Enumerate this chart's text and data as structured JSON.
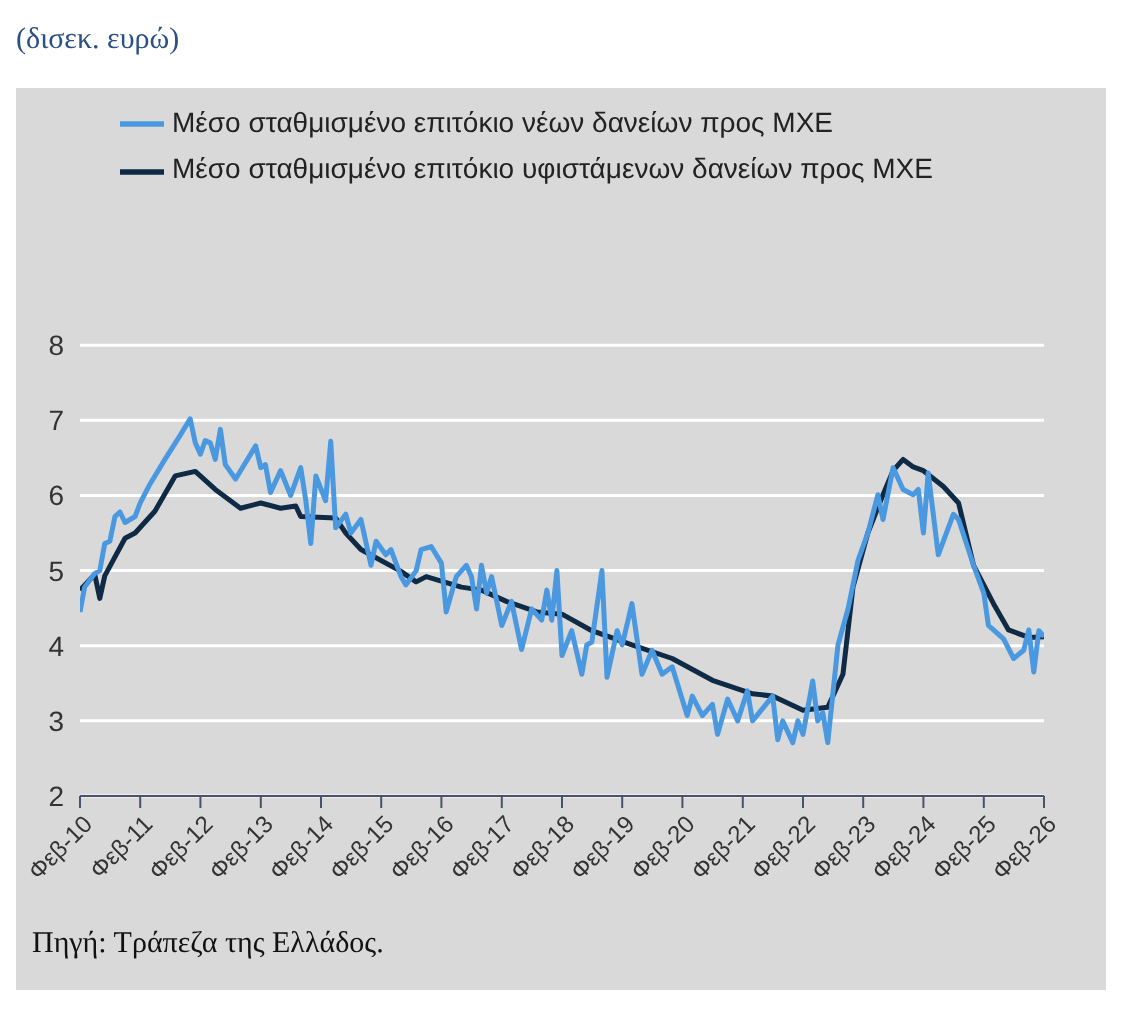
{
  "chart_data": {
    "type": "line",
    "title": "(δισεκ. ευρώ)",
    "annotations": [
      "Πηγή: Τράπεζα της Ελλάδος."
    ],
    "ylim": [
      2,
      8
    ],
    "yticks": [
      2,
      3,
      4,
      5,
      6,
      7,
      8
    ],
    "xlim": [
      "2010-02",
      "2026-02"
    ],
    "xticks": [
      {
        "value": "2010-02",
        "label": "Φεβ-10"
      },
      {
        "value": "2011-02",
        "label": "Φεβ-11"
      },
      {
        "value": "2012-02",
        "label": "Φεβ-12"
      },
      {
        "value": "2013-02",
        "label": "Φεβ-13"
      },
      {
        "value": "2014-02",
        "label": "Φεβ-14"
      },
      {
        "value": "2015-02",
        "label": "Φεβ-15"
      },
      {
        "value": "2016-02",
        "label": "Φεβ-16"
      },
      {
        "value": "2017-02",
        "label": "Φεβ-17"
      },
      {
        "value": "2018-02",
        "label": "Φεβ-18"
      },
      {
        "value": "2019-02",
        "label": "Φεβ-19"
      },
      {
        "value": "2020-02",
        "label": "Φεβ-20"
      },
      {
        "value": "2021-02",
        "label": "Φεβ-21"
      },
      {
        "value": "2022-02",
        "label": "Φεβ-22"
      },
      {
        "value": "2023-02",
        "label": "Φεβ-23"
      },
      {
        "value": "2024-02",
        "label": "Φεβ-24"
      },
      {
        "value": "2025-02",
        "label": "Φεβ-25"
      },
      {
        "value": "2026-02",
        "label": "Φεβ-26"
      }
    ],
    "grid": "y",
    "legend": "top left",
    "marker": "none",
    "line_style": "solid",
    "series": [
      {
        "name": "Μέσο σταθμισμένο επιτόκιο υφιστάμενων δανείων προς ΜΧΕ",
        "color": "#0f2a44",
        "x": [
          "2010-02",
          "2010-05",
          "2010-06",
          "2010-07",
          "2010-11",
          "2011-01",
          "2011-05",
          "2011-09",
          "2012-01",
          "2012-05",
          "2012-10",
          "2013-02",
          "2013-06",
          "2013-09",
          "2013-10",
          "2014-05",
          "2014-07",
          "2014-10",
          "2015-06",
          "2015-09",
          "2015-11",
          "2016-06",
          "2016-10",
          "2017-03",
          "2017-09",
          "2018-02",
          "2018-08",
          "2019-04",
          "2019-12",
          "2020-08",
          "2021-04",
          "2021-08",
          "2022-02",
          "2022-07",
          "2022-10",
          "2022-12",
          "2023-03",
          "2023-06",
          "2023-08",
          "2023-10",
          "2023-12",
          "2024-02",
          "2024-06",
          "2024-09",
          "2024-12",
          "2025-04",
          "2025-07",
          "2025-11",
          "2026-02"
        ],
        "values": [
          4.74,
          4.95,
          4.63,
          4.93,
          5.43,
          5.5,
          5.79,
          6.26,
          6.32,
          6.08,
          5.83,
          5.9,
          5.83,
          5.86,
          5.72,
          5.7,
          5.5,
          5.28,
          4.99,
          4.85,
          4.92,
          4.78,
          4.74,
          4.59,
          4.45,
          4.42,
          4.2,
          4.01,
          3.83,
          3.54,
          3.36,
          3.33,
          3.14,
          3.18,
          3.62,
          4.78,
          5.5,
          6.01,
          6.33,
          6.48,
          6.38,
          6.33,
          6.12,
          5.9,
          5.07,
          4.56,
          4.21,
          4.11,
          4.12
        ]
      },
      {
        "name": "Μέσο σταθμισμένο επιτόκιο νέων δανείων προς ΜΧΕ",
        "color": "#4a98e0",
        "x": [
          "2010-02",
          "2010-03",
          "2010-05",
          "2010-06",
          "2010-07",
          "2010-08",
          "2010-09",
          "2010-10",
          "2010-11",
          "2011-01",
          "2011-02",
          "2011-04",
          "2011-07",
          "2011-10",
          "2011-12",
          "2012-01",
          "2012-02",
          "2012-03",
          "2012-04",
          "2012-05",
          "2012-06",
          "2012-07",
          "2012-09",
          "2013-01",
          "2013-02",
          "2013-03",
          "2013-04",
          "2013-06",
          "2013-08",
          "2013-10",
          "2013-11",
          "2013-12",
          "2014-01",
          "2014-03",
          "2014-04",
          "2014-05",
          "2014-07",
          "2014-08",
          "2014-10",
          "2014-12",
          "2015-01",
          "2015-03",
          "2015-04",
          "2015-06",
          "2015-07",
          "2015-09",
          "2015-10",
          "2015-12",
          "2016-02",
          "2016-03",
          "2016-05",
          "2016-07",
          "2016-08",
          "2016-09",
          "2016-10",
          "2016-11",
          "2016-12",
          "2017-02",
          "2017-04",
          "2017-06",
          "2017-08",
          "2017-10",
          "2017-11",
          "2017-12",
          "2018-01",
          "2018-02",
          "2018-04",
          "2018-06",
          "2018-07",
          "2018-08",
          "2018-10",
          "2018-11",
          "2019-01",
          "2019-02",
          "2019-04",
          "2019-06",
          "2019-08",
          "2019-10",
          "2019-12",
          "2020-03",
          "2020-04",
          "2020-06",
          "2020-08",
          "2020-09",
          "2020-11",
          "2021-01",
          "2021-03",
          "2021-04",
          "2021-08",
          "2021-09",
          "2021-10",
          "2021-12",
          "2022-01",
          "2022-02",
          "2022-04",
          "2022-05",
          "2022-06",
          "2022-07",
          "2022-09",
          "2022-11",
          "2023-01",
          "2023-03",
          "2023-05",
          "2023-06",
          "2023-08",
          "2023-10",
          "2023-12",
          "2024-01",
          "2024-02",
          "2024-03",
          "2024-05",
          "2024-08",
          "2024-09",
          "2024-12",
          "2025-02",
          "2025-03",
          "2025-06",
          "2025-08",
          "2025-10",
          "2025-11",
          "2025-12",
          "2026-01",
          "2026-02"
        ],
        "values": [
          4.45,
          4.78,
          4.96,
          5.0,
          5.36,
          5.39,
          5.72,
          5.78,
          5.64,
          5.72,
          5.9,
          6.15,
          6.48,
          6.8,
          7.02,
          6.7,
          6.55,
          6.73,
          6.7,
          6.48,
          6.88,
          6.41,
          6.22,
          6.66,
          6.37,
          6.41,
          6.04,
          6.33,
          6.0,
          6.37,
          5.93,
          5.36,
          6.26,
          5.93,
          6.72,
          5.57,
          5.75,
          5.5,
          5.68,
          5.07,
          5.39,
          5.21,
          5.28,
          4.92,
          4.81,
          5.0,
          5.28,
          5.32,
          5.1,
          4.45,
          4.92,
          5.07,
          4.92,
          4.49,
          5.07,
          4.7,
          4.92,
          4.27,
          4.59,
          3.95,
          4.49,
          4.34,
          4.74,
          4.34,
          5.0,
          3.87,
          4.2,
          3.62,
          4.01,
          4.05,
          5.0,
          3.58,
          4.2,
          4.01,
          4.56,
          3.62,
          3.94,
          3.62,
          3.72,
          3.07,
          3.33,
          3.07,
          3.22,
          2.82,
          3.29,
          3.0,
          3.4,
          3.0,
          3.33,
          2.75,
          3.0,
          2.71,
          3.0,
          2.82,
          3.53,
          3.0,
          3.11,
          2.71,
          4.01,
          4.49,
          5.14,
          5.5,
          6.01,
          5.68,
          6.37,
          6.08,
          6.01,
          6.08,
          5.5,
          6.3,
          5.21,
          5.75,
          5.68,
          5.07,
          4.7,
          4.27,
          4.09,
          3.83,
          3.94,
          4.21,
          3.65,
          4.2,
          4.12
        ]
      }
    ]
  }
}
